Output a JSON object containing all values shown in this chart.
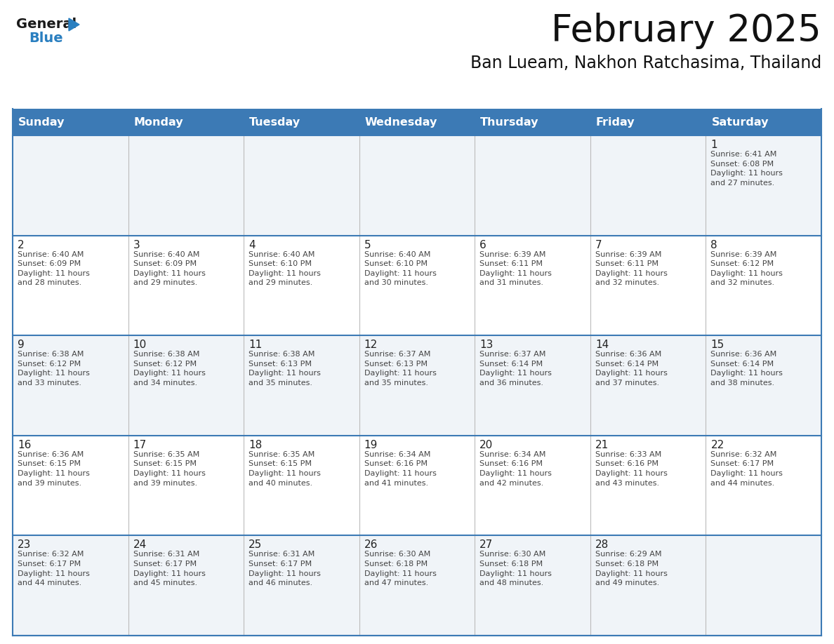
{
  "title": "February 2025",
  "subtitle": "Ban Lueam, Nakhon Ratchasima, Thailand",
  "days_of_week": [
    "Sunday",
    "Monday",
    "Tuesday",
    "Wednesday",
    "Thursday",
    "Friday",
    "Saturday"
  ],
  "header_bg": "#3c7ab5",
  "header_text_color": "#ffffff",
  "cell_bg_light": "#f0f4f8",
  "cell_bg_white": "#ffffff",
  "divider_color": "#3c7ab5",
  "text_color": "#444444",
  "day_num_color": "#222222",
  "logo_general_color": "#1a1a1a",
  "logo_blue_color": "#2a7fc0",
  "weeks": [
    [
      {
        "day": null,
        "info": null
      },
      {
        "day": null,
        "info": null
      },
      {
        "day": null,
        "info": null
      },
      {
        "day": null,
        "info": null
      },
      {
        "day": null,
        "info": null
      },
      {
        "day": null,
        "info": null
      },
      {
        "day": 1,
        "info": "Sunrise: 6:41 AM\nSunset: 6:08 PM\nDaylight: 11 hours\nand 27 minutes."
      }
    ],
    [
      {
        "day": 2,
        "info": "Sunrise: 6:40 AM\nSunset: 6:09 PM\nDaylight: 11 hours\nand 28 minutes."
      },
      {
        "day": 3,
        "info": "Sunrise: 6:40 AM\nSunset: 6:09 PM\nDaylight: 11 hours\nand 29 minutes."
      },
      {
        "day": 4,
        "info": "Sunrise: 6:40 AM\nSunset: 6:10 PM\nDaylight: 11 hours\nand 29 minutes."
      },
      {
        "day": 5,
        "info": "Sunrise: 6:40 AM\nSunset: 6:10 PM\nDaylight: 11 hours\nand 30 minutes."
      },
      {
        "day": 6,
        "info": "Sunrise: 6:39 AM\nSunset: 6:11 PM\nDaylight: 11 hours\nand 31 minutes."
      },
      {
        "day": 7,
        "info": "Sunrise: 6:39 AM\nSunset: 6:11 PM\nDaylight: 11 hours\nand 32 minutes."
      },
      {
        "day": 8,
        "info": "Sunrise: 6:39 AM\nSunset: 6:12 PM\nDaylight: 11 hours\nand 32 minutes."
      }
    ],
    [
      {
        "day": 9,
        "info": "Sunrise: 6:38 AM\nSunset: 6:12 PM\nDaylight: 11 hours\nand 33 minutes."
      },
      {
        "day": 10,
        "info": "Sunrise: 6:38 AM\nSunset: 6:12 PM\nDaylight: 11 hours\nand 34 minutes."
      },
      {
        "day": 11,
        "info": "Sunrise: 6:38 AM\nSunset: 6:13 PM\nDaylight: 11 hours\nand 35 minutes."
      },
      {
        "day": 12,
        "info": "Sunrise: 6:37 AM\nSunset: 6:13 PM\nDaylight: 11 hours\nand 35 minutes."
      },
      {
        "day": 13,
        "info": "Sunrise: 6:37 AM\nSunset: 6:14 PM\nDaylight: 11 hours\nand 36 minutes."
      },
      {
        "day": 14,
        "info": "Sunrise: 6:36 AM\nSunset: 6:14 PM\nDaylight: 11 hours\nand 37 minutes."
      },
      {
        "day": 15,
        "info": "Sunrise: 6:36 AM\nSunset: 6:14 PM\nDaylight: 11 hours\nand 38 minutes."
      }
    ],
    [
      {
        "day": 16,
        "info": "Sunrise: 6:36 AM\nSunset: 6:15 PM\nDaylight: 11 hours\nand 39 minutes."
      },
      {
        "day": 17,
        "info": "Sunrise: 6:35 AM\nSunset: 6:15 PM\nDaylight: 11 hours\nand 39 minutes."
      },
      {
        "day": 18,
        "info": "Sunrise: 6:35 AM\nSunset: 6:15 PM\nDaylight: 11 hours\nand 40 minutes."
      },
      {
        "day": 19,
        "info": "Sunrise: 6:34 AM\nSunset: 6:16 PM\nDaylight: 11 hours\nand 41 minutes."
      },
      {
        "day": 20,
        "info": "Sunrise: 6:34 AM\nSunset: 6:16 PM\nDaylight: 11 hours\nand 42 minutes."
      },
      {
        "day": 21,
        "info": "Sunrise: 6:33 AM\nSunset: 6:16 PM\nDaylight: 11 hours\nand 43 minutes."
      },
      {
        "day": 22,
        "info": "Sunrise: 6:32 AM\nSunset: 6:17 PM\nDaylight: 11 hours\nand 44 minutes."
      }
    ],
    [
      {
        "day": 23,
        "info": "Sunrise: 6:32 AM\nSunset: 6:17 PM\nDaylight: 11 hours\nand 44 minutes."
      },
      {
        "day": 24,
        "info": "Sunrise: 6:31 AM\nSunset: 6:17 PM\nDaylight: 11 hours\nand 45 minutes."
      },
      {
        "day": 25,
        "info": "Sunrise: 6:31 AM\nSunset: 6:17 PM\nDaylight: 11 hours\nand 46 minutes."
      },
      {
        "day": 26,
        "info": "Sunrise: 6:30 AM\nSunset: 6:18 PM\nDaylight: 11 hours\nand 47 minutes."
      },
      {
        "day": 27,
        "info": "Sunrise: 6:30 AM\nSunset: 6:18 PM\nDaylight: 11 hours\nand 48 minutes."
      },
      {
        "day": 28,
        "info": "Sunrise: 6:29 AM\nSunset: 6:18 PM\nDaylight: 11 hours\nand 49 minutes."
      },
      {
        "day": null,
        "info": null
      }
    ]
  ]
}
